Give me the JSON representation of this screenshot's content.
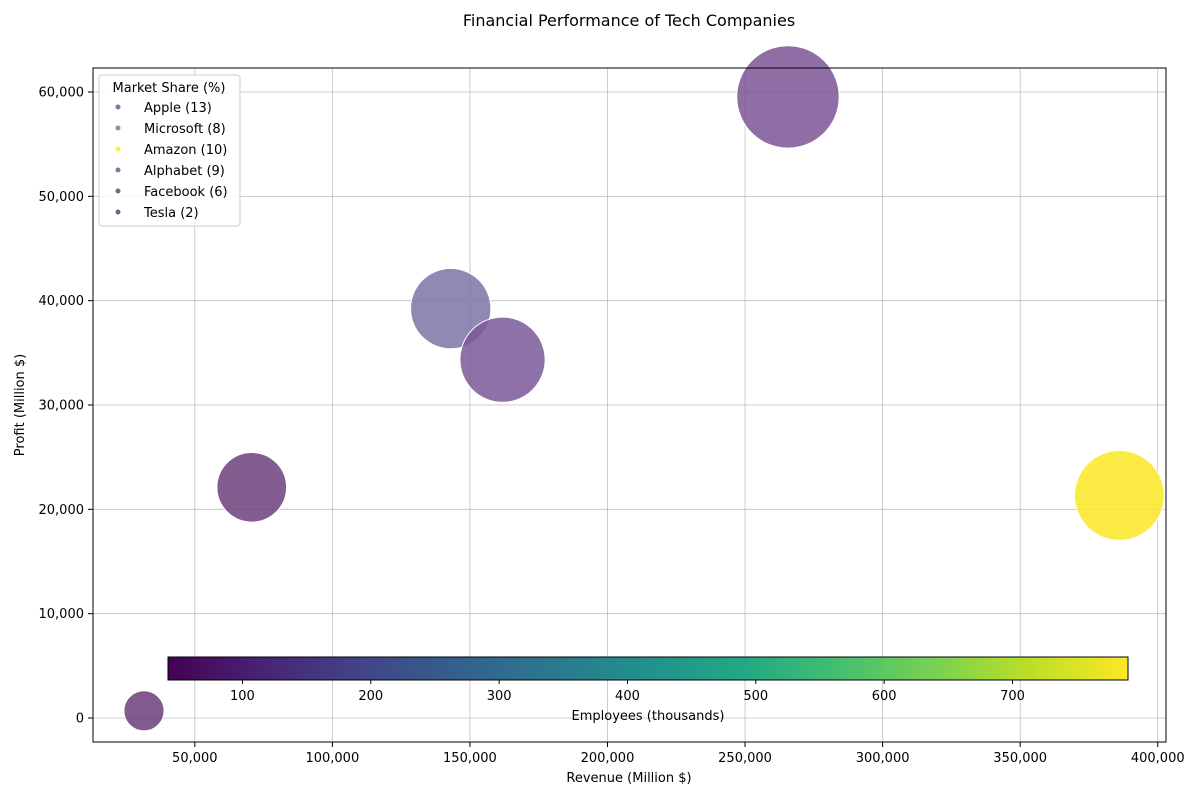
{
  "chart_data": {
    "type": "scatter",
    "title": "Financial Performance of Tech Companies",
    "xlabel": "Revenue (Million $)",
    "ylabel": "Profit (Million $)",
    "xlim": [
      13000,
      403000
    ],
    "ylim": [
      -2300,
      62300
    ],
    "grid": true,
    "x_ticks": [
      50000,
      100000,
      150000,
      200000,
      250000,
      300000,
      350000,
      400000
    ],
    "x_tick_labels": [
      "50,000",
      "100,000",
      "150,000",
      "200,000",
      "250,000",
      "300,000",
      "350,000",
      "400,000"
    ],
    "y_ticks": [
      0,
      10000,
      20000,
      30000,
      40000,
      50000,
      60000
    ],
    "y_tick_labels": [
      "0",
      "10,000",
      "20,000",
      "30,000",
      "40,000",
      "50,000",
      "60,000"
    ],
    "legend_title": "Market Share (%)",
    "legend_position": "top-left",
    "colorbar": {
      "label": "Employees (thousands)",
      "range": [
        42,
        790
      ],
      "ticks": [
        100,
        200,
        300,
        400,
        500,
        600,
        700
      ],
      "tick_labels": [
        "100",
        "200",
        "300",
        "400",
        "500",
        "600",
        "700"
      ],
      "colormap": "viridis",
      "placement": "inside-bottom"
    },
    "points": [
      {
        "legend_label": "Apple (13)",
        "revenue": 265595,
        "profit": 59531,
        "employees": 132,
        "market_share": 13,
        "color": "#7a5595"
      },
      {
        "legend_label": "Microsoft (8)",
        "revenue": 143015,
        "profit": 39240,
        "employees": 163,
        "market_share": 8,
        "color": "#7a75a6"
      },
      {
        "legend_label": "Amazon (10)",
        "revenue": 386064,
        "profit": 21331,
        "employees": 798,
        "market_share": 10,
        "color": "#fde725"
      },
      {
        "legend_label": "Alphabet (9)",
        "revenue": 161857,
        "profit": 34343,
        "employees": 118,
        "market_share": 9,
        "color": "#7a5897"
      },
      {
        "legend_label": "Facebook (6)",
        "revenue": 70697,
        "profit": 22112,
        "employees": 58,
        "market_share": 6,
        "color": "#6d3f7c"
      },
      {
        "legend_label": "Tesla (2)",
        "revenue": 31536,
        "profit": 690,
        "employees": 71,
        "market_share": 2,
        "color": "#6c3d7a"
      }
    ]
  }
}
